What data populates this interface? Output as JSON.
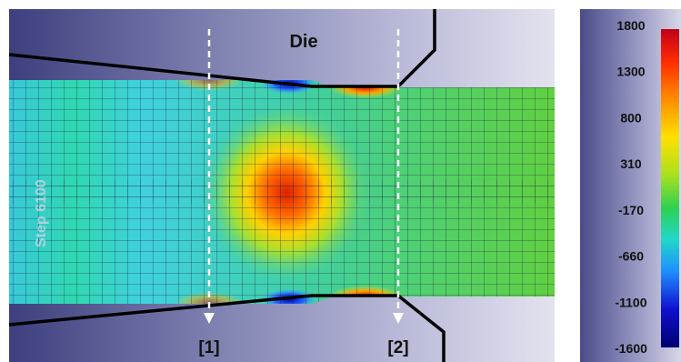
{
  "die_label": "Die",
  "step_label": "Step 6100",
  "section_labels": [
    "[1]",
    "[2]"
  ],
  "colorbar": {
    "ticks": [
      "1800",
      "1300",
      "800",
      "310",
      "-170",
      "-660",
      "-1100",
      "-1600"
    ],
    "colors": [
      "#c0001a",
      "#ff2a00",
      "#ff8c00",
      "#ffe000",
      "#a8e020",
      "#30d050",
      "#20d8c8",
      "#1e90ff",
      "#1010d0",
      "#000070"
    ]
  }
}
